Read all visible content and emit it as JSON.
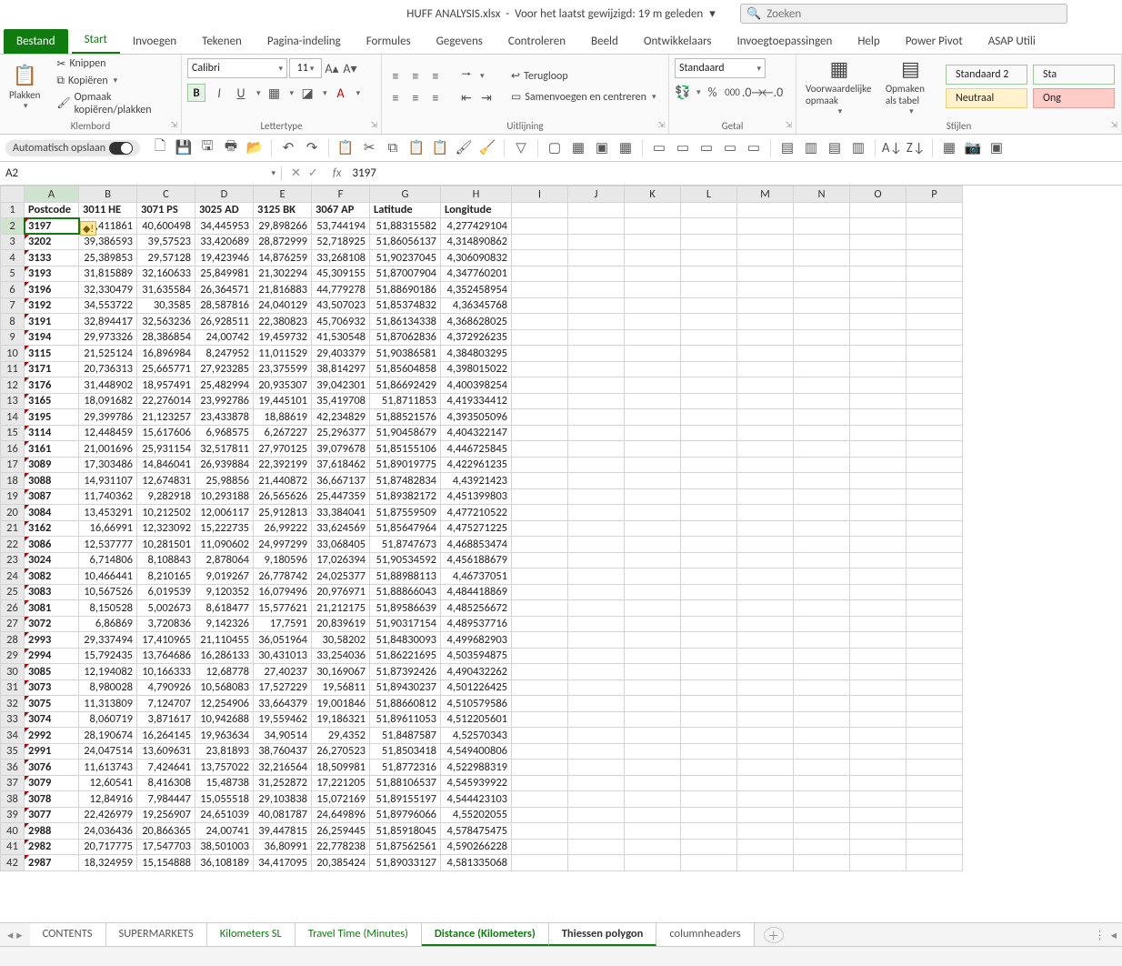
{
  "titlebar": {
    "filename": "HUFF ANALYSIS.xlsx",
    "modified": "Voor het laatst gewijzigd: 19 m geleden",
    "search_placeholder": "Zoeken"
  },
  "ribbon_tabs": {
    "file": "Bestand",
    "items": [
      "Start",
      "Invoegen",
      "Tekenen",
      "Pagina-indeling",
      "Formules",
      "Gegevens",
      "Controleren",
      "Beeld",
      "Ontwikkelaars",
      "Invoegtoepassingen",
      "Help",
      "Power Pivot",
      "ASAP Utili"
    ],
    "active": "Start"
  },
  "ribbon": {
    "clipboard": {
      "paste": "Plakken",
      "cut": "Knippen",
      "copy": "Kopiëren",
      "format_painter": "Opmaak kopiëren/plakken",
      "label": "Klembord"
    },
    "font": {
      "name": "Calibri",
      "size": "11",
      "label": "Lettertype"
    },
    "alignment": {
      "wrap": "Terugloop",
      "merge": "Samenvoegen en centreren",
      "label": "Uitlijning"
    },
    "number": {
      "format": "Standaard",
      "label": "Getal"
    },
    "styles": {
      "cond": "Voorwaardelijke opmaak",
      "table": "Opmaken als tabel",
      "s1": "Standaard 2",
      "s2": "Neutraal",
      "s3": "Ong",
      "s4": "Sta",
      "label": "Stijlen"
    }
  },
  "qat": {
    "autosave": "Automatisch opslaan"
  },
  "namebox": "A2",
  "formula": "3197",
  "columns_letters": [
    "A",
    "B",
    "C",
    "D",
    "E",
    "F",
    "G",
    "H",
    "I",
    "J",
    "K",
    "L",
    "M",
    "N",
    "O",
    "P"
  ],
  "headers": [
    "Postcode",
    "3011 HE",
    "3071 PS",
    "3025 AD",
    "3125 BK",
    "3067 AP",
    "Latitude",
    "Longitude"
  ],
  "rows": [
    [
      "3197",
      ",411861",
      "40,600498",
      "34,445953",
      "29,898266",
      "53,744194",
      "51,88315582",
      "4,277429104"
    ],
    [
      "3202",
      "39,386593",
      "39,57523",
      "33,420689",
      "28,872999",
      "52,718925",
      "51,86056137",
      "4,314890862"
    ],
    [
      "3133",
      "25,389853",
      "29,57128",
      "19,423946",
      "14,876259",
      "33,268108",
      "51,90237045",
      "4,306090832"
    ],
    [
      "3193",
      "31,815889",
      "32,160633",
      "25,849981",
      "21,302294",
      "45,309155",
      "51,87007904",
      "4,347760201"
    ],
    [
      "3196",
      "32,330479",
      "31,635584",
      "26,364571",
      "21,816883",
      "44,779278",
      "51,88690186",
      "4,352458954"
    ],
    [
      "3192",
      "34,553722",
      "30,3585",
      "28,587816",
      "24,040129",
      "43,507023",
      "51,85374832",
      "4,36345768"
    ],
    [
      "3191",
      "32,894417",
      "32,563236",
      "26,928511",
      "22,380823",
      "45,706932",
      "51,86134338",
      "4,368628025"
    ],
    [
      "3194",
      "29,973326",
      "28,386854",
      "24,00742",
      "19,459732",
      "41,530548",
      "51,87062836",
      "4,372926235"
    ],
    [
      "3115",
      "21,525124",
      "16,896984",
      "8,247952",
      "11,011529",
      "29,403379",
      "51,90386581",
      "4,384803295"
    ],
    [
      "3171",
      "20,736313",
      "25,665771",
      "27,923285",
      "23,375599",
      "38,814297",
      "51,85604858",
      "4,398015022"
    ],
    [
      "3176",
      "31,448902",
      "18,957491",
      "25,482994",
      "20,935307",
      "39,042301",
      "51,86692429",
      "4,400398254"
    ],
    [
      "3165",
      "18,091682",
      "22,276014",
      "23,992786",
      "19,445101",
      "35,419708",
      "51,8711853",
      "4,419334412"
    ],
    [
      "3195",
      "29,399786",
      "21,123257",
      "23,433878",
      "18,88619",
      "42,234829",
      "51,88521576",
      "4,393505096"
    ],
    [
      "3114",
      "12,448459",
      "15,617606",
      "6,968575",
      "6,267227",
      "25,296377",
      "51,90458679",
      "4,404322147"
    ],
    [
      "3161",
      "21,001696",
      "25,931154",
      "32,517811",
      "27,970125",
      "39,079678",
      "51,85155106",
      "4,446725845"
    ],
    [
      "3089",
      "17,303486",
      "14,846041",
      "26,939884",
      "22,392199",
      "37,618462",
      "51,89019775",
      "4,422961235"
    ],
    [
      "3088",
      "14,931107",
      "12,674831",
      "25,98856",
      "21,440872",
      "36,667137",
      "51,87482834",
      "4,43921423"
    ],
    [
      "3087",
      "11,740362",
      "9,282918",
      "10,293188",
      "26,565626",
      "25,447359",
      "51,89382172",
      "4,451399803"
    ],
    [
      "3084",
      "13,453291",
      "10,212502",
      "12,006117",
      "25,912813",
      "33,384041",
      "51,87559509",
      "4,477210522"
    ],
    [
      "3162",
      "16,66991",
      "12,323092",
      "15,222735",
      "26,99222",
      "33,624569",
      "51,85647964",
      "4,475271225"
    ],
    [
      "3086",
      "12,537777",
      "10,281501",
      "11,090602",
      "24,997299",
      "33,068405",
      "51,8747673",
      "4,468853474"
    ],
    [
      "3024",
      "6,714806",
      "8,108843",
      "2,878064",
      "9,180596",
      "17,026394",
      "51,90534592",
      "4,456188679"
    ],
    [
      "3082",
      "10,466441",
      "8,210165",
      "9,019267",
      "26,778742",
      "24,025377",
      "51,88988113",
      "4,46737051"
    ],
    [
      "3083",
      "10,567526",
      "6,019539",
      "9,120352",
      "16,079496",
      "20,976971",
      "51,88866043",
      "4,484418869"
    ],
    [
      "3081",
      "8,150528",
      "5,002673",
      "8,618477",
      "15,577621",
      "21,212175",
      "51,89586639",
      "4,485256672"
    ],
    [
      "3072",
      "6,86869",
      "3,720836",
      "9,142326",
      "17,7591",
      "20,839619",
      "51,90317154",
      "4,489537716"
    ],
    [
      "2993",
      "29,337494",
      "17,410965",
      "21,110455",
      "36,051964",
      "30,58202",
      "51,84830093",
      "4,499682903"
    ],
    [
      "2994",
      "15,792435",
      "13,764686",
      "16,286133",
      "30,431013",
      "33,254036",
      "51,86221695",
      "4,503594875"
    ],
    [
      "3085",
      "12,194082",
      "10,166333",
      "12,68778",
      "27,40237",
      "30,169067",
      "51,87392426",
      "4,490432262"
    ],
    [
      "3073",
      "8,980028",
      "4,790926",
      "10,568083",
      "17,527229",
      "19,56811",
      "51,89430237",
      "4,501226425"
    ],
    [
      "3075",
      "11,313809",
      "7,124707",
      "12,254906",
      "33,664379",
      "19,001846",
      "51,88660812",
      "4,510579586"
    ],
    [
      "3074",
      "8,060719",
      "3,871617",
      "10,942688",
      "19,559462",
      "19,186321",
      "51,89611053",
      "4,512205601"
    ],
    [
      "2992",
      "28,190674",
      "16,264145",
      "19,963634",
      "34,90514",
      "29,4352",
      "51,8487587",
      "4,52570343"
    ],
    [
      "2991",
      "24,047514",
      "13,609631",
      "23,81893",
      "38,760437",
      "26,270523",
      "51,8503418",
      "4,549400806"
    ],
    [
      "3076",
      "11,613743",
      "7,424641",
      "13,757022",
      "32,216564",
      "18,509981",
      "51,8772316",
      "4,522988319"
    ],
    [
      "3079",
      "12,60541",
      "8,416308",
      "15,48738",
      "31,252872",
      "17,221205",
      "51,88106537",
      "4,545939922"
    ],
    [
      "3078",
      "12,84916",
      "7,984447",
      "15,055518",
      "29,103838",
      "15,072169",
      "51,89155197",
      "4,544423103"
    ],
    [
      "3077",
      "22,426979",
      "19,256907",
      "24,651039",
      "40,081787",
      "24,649896",
      "51,89796066",
      "4,55202055"
    ],
    [
      "2988",
      "24,036436",
      "20,866365",
      "24,00741",
      "39,447815",
      "26,259445",
      "51,85918045",
      "4,578475475"
    ],
    [
      "2982",
      "20,717775",
      "17,547703",
      "38,501003",
      "36,80991",
      "22,778238",
      "51,87562561",
      "4,590266228"
    ],
    [
      "2987",
      "18,324959",
      "15,154888",
      "36,108189",
      "34,417095",
      "20,385424",
      "51,89033127",
      "4,581335068"
    ]
  ],
  "sheet_tabs": {
    "plain": [
      "CONTENTS",
      "SUPERMARKETS"
    ],
    "grouped": [
      "Kilometers SL",
      "Travel Time (Minutes)",
      "Distance (Kilometers)"
    ],
    "current": "Thiessen polygon",
    "after": [
      "columnheaders"
    ]
  },
  "colors": {
    "accent": "#107c10"
  }
}
